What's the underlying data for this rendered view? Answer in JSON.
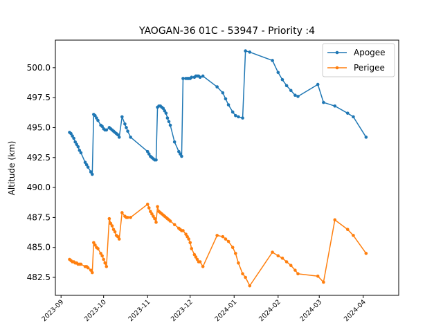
{
  "chart_data": {
    "type": "line",
    "title": "YAOGAN-36 01C - 53947 - Priority :4",
    "xlabel": "",
    "ylabel": "Altitude (km)",
    "ylim": [
      481.0,
      502.3
    ],
    "xlim": [
      "2023-08-28",
      "2024-04-26"
    ],
    "x_ticks": [
      "2023-09-01",
      "2023-10-01",
      "2023-11-01",
      "2023-12-01",
      "2024-01-01",
      "2024-02-01",
      "2024-03-01",
      "2024-04-01"
    ],
    "x_tick_labels": [
      "2023-09",
      "2023-10",
      "2023-11",
      "2023-12",
      "2024-01",
      "2024-02",
      "2024-03",
      "2024-04"
    ],
    "y_ticks": [
      482.5,
      485.0,
      487.5,
      490.0,
      492.5,
      495.0,
      497.5,
      500.0
    ],
    "y_tick_labels": [
      "482.5",
      "485.0",
      "487.5",
      "490.0",
      "492.5",
      "495.0",
      "497.5",
      "500.0"
    ],
    "grid": false,
    "legend_position": "top-right",
    "series": [
      {
        "name": "Apogee",
        "color": "#1f77b4",
        "points": [
          [
            "2023-09-07",
            494.6
          ],
          [
            "2023-09-08",
            494.5
          ],
          [
            "2023-09-09",
            494.3
          ],
          [
            "2023-09-10",
            494.1
          ],
          [
            "2023-09-11",
            493.8
          ],
          [
            "2023-09-12",
            493.6
          ],
          [
            "2023-09-13",
            493.4
          ],
          [
            "2023-09-14",
            493.1
          ],
          [
            "2023-09-15",
            492.9
          ],
          [
            "2023-09-18",
            492.1
          ],
          [
            "2023-09-19",
            491.9
          ],
          [
            "2023-09-20",
            491.7
          ],
          [
            "2023-09-22",
            491.3
          ],
          [
            "2023-09-23",
            491.1
          ],
          [
            "2023-09-24",
            496.1
          ],
          [
            "2023-09-25",
            496.0
          ],
          [
            "2023-09-26",
            495.8
          ],
          [
            "2023-09-27",
            495.6
          ],
          [
            "2023-09-29",
            495.2
          ],
          [
            "2023-09-30",
            495.1
          ],
          [
            "2023-10-01",
            494.9
          ],
          [
            "2023-10-02",
            494.8
          ],
          [
            "2023-10-03",
            494.8
          ],
          [
            "2023-10-05",
            495.0
          ],
          [
            "2023-10-06",
            494.9
          ],
          [
            "2023-10-07",
            494.8
          ],
          [
            "2023-10-08",
            494.7
          ],
          [
            "2023-10-09",
            494.6
          ],
          [
            "2023-10-10",
            494.5
          ],
          [
            "2023-10-11",
            494.4
          ],
          [
            "2023-10-12",
            494.2
          ],
          [
            "2023-10-14",
            495.9
          ],
          [
            "2023-10-16",
            495.3
          ],
          [
            "2023-10-17",
            495.0
          ],
          [
            "2023-10-18",
            494.7
          ],
          [
            "2023-10-20",
            494.2
          ],
          [
            "2023-11-01",
            493.0
          ],
          [
            "2023-11-02",
            492.8
          ],
          [
            "2023-11-03",
            492.6
          ],
          [
            "2023-11-04",
            492.5
          ],
          [
            "2023-11-05",
            492.4
          ],
          [
            "2023-11-06",
            492.3
          ],
          [
            "2023-11-07",
            492.3
          ],
          [
            "2023-11-08",
            496.7
          ],
          [
            "2023-11-09",
            496.8
          ],
          [
            "2023-11-10",
            496.8
          ],
          [
            "2023-11-11",
            496.7
          ],
          [
            "2023-11-12",
            496.6
          ],
          [
            "2023-11-13",
            496.4
          ],
          [
            "2023-11-14",
            496.2
          ],
          [
            "2023-11-15",
            495.8
          ],
          [
            "2023-11-16",
            495.5
          ],
          [
            "2023-11-17",
            495.2
          ],
          [
            "2023-11-20",
            493.8
          ],
          [
            "2023-11-23",
            493.0
          ],
          [
            "2023-11-24",
            492.8
          ],
          [
            "2023-11-25",
            492.6
          ],
          [
            "2023-11-26",
            499.1
          ],
          [
            "2023-11-28",
            499.1
          ],
          [
            "2023-11-29",
            499.1
          ],
          [
            "2023-11-30",
            499.1
          ],
          [
            "2023-12-01",
            499.1
          ],
          [
            "2023-12-02",
            499.2
          ],
          [
            "2023-12-04",
            499.2
          ],
          [
            "2023-12-05",
            499.3
          ],
          [
            "2023-12-06",
            499.3
          ],
          [
            "2023-12-07",
            499.3
          ],
          [
            "2023-12-08",
            499.2
          ],
          [
            "2023-12-10",
            499.3
          ],
          [
            "2023-12-20",
            498.4
          ],
          [
            "2023-12-24",
            497.9
          ],
          [
            "2023-12-26",
            497.4
          ],
          [
            "2023-12-28",
            496.9
          ],
          [
            "2023-12-31",
            496.3
          ],
          [
            "2024-01-02",
            496.0
          ],
          [
            "2024-01-04",
            495.9
          ],
          [
            "2024-01-07",
            495.8
          ],
          [
            "2024-01-09",
            501.4
          ],
          [
            "2024-01-12",
            501.3
          ],
          [
            "2024-01-28",
            500.6
          ],
          [
            "2024-02-01",
            499.6
          ],
          [
            "2024-02-04",
            499.0
          ],
          [
            "2024-02-07",
            498.5
          ],
          [
            "2024-02-10",
            498.1
          ],
          [
            "2024-02-13",
            497.7
          ],
          [
            "2024-02-15",
            497.6
          ],
          [
            "2024-02-29",
            498.6
          ],
          [
            "2024-03-04",
            497.1
          ],
          [
            "2024-03-12",
            496.8
          ],
          [
            "2024-03-21",
            496.2
          ],
          [
            "2024-03-25",
            495.9
          ],
          [
            "2024-04-03",
            494.2
          ]
        ]
      },
      {
        "name": "Perigee",
        "color": "#ff7f0e",
        "points": [
          [
            "2023-09-07",
            484.0
          ],
          [
            "2023-09-08",
            483.9
          ],
          [
            "2023-09-09",
            483.8
          ],
          [
            "2023-09-10",
            483.8
          ],
          [
            "2023-09-11",
            483.7
          ],
          [
            "2023-09-12",
            483.7
          ],
          [
            "2023-09-13",
            483.6
          ],
          [
            "2023-09-14",
            483.6
          ],
          [
            "2023-09-15",
            483.6
          ],
          [
            "2023-09-18",
            483.4
          ],
          [
            "2023-09-19",
            483.4
          ],
          [
            "2023-09-20",
            483.3
          ],
          [
            "2023-09-22",
            483.1
          ],
          [
            "2023-09-23",
            482.9
          ],
          [
            "2023-09-24",
            485.4
          ],
          [
            "2023-09-25",
            485.2
          ],
          [
            "2023-09-26",
            485.0
          ],
          [
            "2023-09-27",
            484.9
          ],
          [
            "2023-09-29",
            484.5
          ],
          [
            "2023-09-30",
            484.3
          ],
          [
            "2023-10-01",
            484.0
          ],
          [
            "2023-10-02",
            483.7
          ],
          [
            "2023-10-03",
            483.4
          ],
          [
            "2023-10-05",
            487.4
          ],
          [
            "2023-10-06",
            487.0
          ],
          [
            "2023-10-07",
            486.8
          ],
          [
            "2023-10-08",
            486.5
          ],
          [
            "2023-10-09",
            486.3
          ],
          [
            "2023-10-10",
            486.0
          ],
          [
            "2023-10-11",
            485.9
          ],
          [
            "2023-10-12",
            485.7
          ],
          [
            "2023-10-14",
            487.9
          ],
          [
            "2023-10-16",
            487.6
          ],
          [
            "2023-10-17",
            487.5
          ],
          [
            "2023-10-18",
            487.5
          ],
          [
            "2023-10-20",
            487.5
          ],
          [
            "2023-11-01",
            488.6
          ],
          [
            "2023-11-02",
            488.3
          ],
          [
            "2023-11-03",
            488.0
          ],
          [
            "2023-11-04",
            487.8
          ],
          [
            "2023-11-05",
            487.6
          ],
          [
            "2023-11-06",
            487.4
          ],
          [
            "2023-11-07",
            487.1
          ],
          [
            "2023-11-08",
            488.4
          ],
          [
            "2023-11-09",
            488.0
          ],
          [
            "2023-11-10",
            487.9
          ],
          [
            "2023-11-11",
            487.8
          ],
          [
            "2023-11-12",
            487.7
          ],
          [
            "2023-11-13",
            487.6
          ],
          [
            "2023-11-14",
            487.5
          ],
          [
            "2023-11-15",
            487.4
          ],
          [
            "2023-11-16",
            487.3
          ],
          [
            "2023-11-17",
            487.2
          ],
          [
            "2023-11-20",
            486.9
          ],
          [
            "2023-11-23",
            486.6
          ],
          [
            "2023-11-24",
            486.5
          ],
          [
            "2023-11-25",
            486.4
          ],
          [
            "2023-11-26",
            486.4
          ],
          [
            "2023-11-28",
            486.1
          ],
          [
            "2023-11-29",
            485.9
          ],
          [
            "2023-11-30",
            485.7
          ],
          [
            "2023-12-01",
            485.4
          ],
          [
            "2023-12-02",
            484.9
          ],
          [
            "2023-12-04",
            484.4
          ],
          [
            "2023-12-05",
            484.2
          ],
          [
            "2023-12-06",
            484.0
          ],
          [
            "2023-12-07",
            483.8
          ],
          [
            "2023-12-08",
            483.8
          ],
          [
            "2023-12-10",
            483.4
          ],
          [
            "2023-12-20",
            486.0
          ],
          [
            "2023-12-24",
            485.9
          ],
          [
            "2023-12-26",
            485.7
          ],
          [
            "2023-12-28",
            485.5
          ],
          [
            "2023-12-31",
            485.0
          ],
          [
            "2024-01-02",
            484.5
          ],
          [
            "2024-01-04",
            483.7
          ],
          [
            "2024-01-07",
            482.8
          ],
          [
            "2024-01-09",
            482.5
          ],
          [
            "2024-01-12",
            481.8
          ],
          [
            "2024-01-28",
            484.6
          ],
          [
            "2024-02-01",
            484.3
          ],
          [
            "2024-02-04",
            484.1
          ],
          [
            "2024-02-07",
            483.8
          ],
          [
            "2024-02-10",
            483.5
          ],
          [
            "2024-02-13",
            483.1
          ],
          [
            "2024-02-15",
            482.8
          ],
          [
            "2024-02-29",
            482.6
          ],
          [
            "2024-03-04",
            482.1
          ],
          [
            "2024-03-12",
            487.3
          ],
          [
            "2024-03-21",
            486.5
          ],
          [
            "2024-03-25",
            486.0
          ],
          [
            "2024-04-03",
            484.5
          ]
        ]
      }
    ]
  }
}
